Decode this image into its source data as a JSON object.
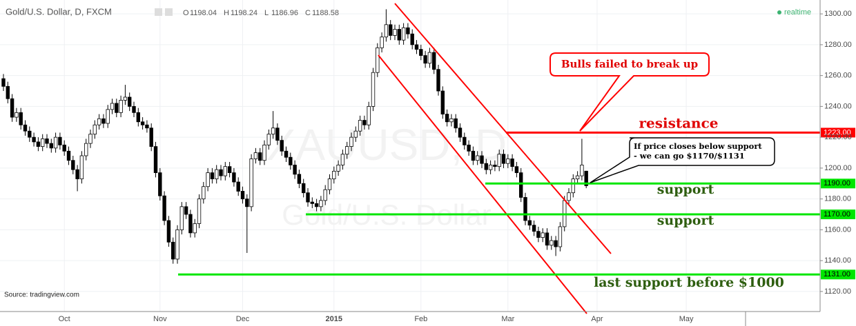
{
  "chart_data": {
    "type": "candlestick",
    "title": "Gold/U.S. Dollar, D, FXCM",
    "ohlc_letters": [
      "O",
      "H",
      "L",
      "C"
    ],
    "status": "realtime",
    "watermark": [
      "XAUUSD, D",
      "Gold/U.S. Dollar"
    ],
    "source": "Source: tradingview.com",
    "categories": [
      null,
      null,
      null,
      null,
      null,
      null,
      null,
      null,
      null,
      null,
      null,
      null,
      null,
      null,
      "Oct",
      null,
      null,
      null,
      null,
      null,
      null,
      null,
      null,
      null,
      null,
      null,
      null,
      null,
      null,
      null,
      null,
      null,
      null,
      null,
      null,
      null,
      "Nov",
      null,
      null,
      null,
      null,
      null,
      null,
      null,
      null,
      null,
      null,
      null,
      null,
      null,
      null,
      null,
      null,
      null,
      null,
      "Dec",
      null,
      null,
      null,
      null,
      null,
      null,
      null,
      null,
      null,
      null,
      null,
      null,
      null,
      null,
      null,
      null,
      null,
      null,
      null,
      null,
      "2015",
      null,
      null,
      null,
      null,
      null,
      null,
      null,
      null,
      null,
      null,
      null,
      null,
      null,
      null,
      null,
      null,
      null,
      null,
      null,
      "Feb",
      null,
      null,
      null,
      null,
      null,
      null,
      null,
      null,
      null,
      null,
      null,
      null,
      null,
      null,
      null,
      null,
      null,
      null,
      null,
      "Mar",
      null,
      null,
      null,
      null,
      null,
      null,
      null,
      null,
      null,
      null,
      null,
      null,
      null,
      null,
      null,
      null,
      null,
      null
    ],
    "future_categories": [
      "Apr",
      "May"
    ],
    "open": [
      1258,
      1253,
      1245,
      1233,
      1236,
      1228,
      1224,
      1220,
      1217,
      1214,
      1219,
      1216,
      1213,
      1220,
      1215,
      1211,
      1205,
      1199,
      1193,
      1208,
      1216,
      1222,
      1228,
      1232,
      1229,
      1238,
      1242,
      1236,
      1244,
      1246,
      1240,
      1236,
      1230,
      1228,
      1226,
      1214,
      1197,
      1182,
      1166,
      1152,
      1141,
      1160,
      1175,
      1170,
      1158,
      1164,
      1180,
      1188,
      1197,
      1193,
      1199,
      1195,
      1201,
      1197,
      1191,
      1185,
      1180,
      1175,
      1206,
      1210,
      1205,
      1215,
      1222,
      1226,
      1218,
      1211,
      1207,
      1202,
      1196,
      1190,
      1184,
      1178,
      1177,
      1175,
      1179,
      1186,
      1193,
      1198,
      1202,
      1209,
      1214,
      1220,
      1224,
      1231,
      1228,
      1240,
      1262,
      1278,
      1285,
      1293,
      1286,
      1290,
      1283,
      1291,
      1287,
      1280,
      1277,
      1273,
      1268,
      1275,
      1264,
      1250,
      1235,
      1230,
      1232,
      1226,
      1220,
      1215,
      1211,
      1205,
      1208,
      1203,
      1199,
      1202,
      1201,
      1209,
      1203,
      1206,
      1201,
      1197,
      1181,
      1166,
      1163,
      1159,
      1155,
      1158,
      1150,
      1153,
      1149,
      1162,
      1179,
      1184,
      1193,
      1195,
      1198.04
    ],
    "high": [
      1261,
      1256,
      1248,
      1239,
      1239,
      1231,
      1227,
      1223,
      1220,
      1222,
      1222,
      1219,
      1223,
      1223,
      1218,
      1214,
      1208,
      1202,
      1211,
      1219,
      1225,
      1231,
      1235,
      1235,
      1241,
      1245,
      1245,
      1247,
      1254,
      1249,
      1243,
      1239,
      1233,
      1231,
      1229,
      1217,
      1200,
      1185,
      1169,
      1155,
      1163,
      1178,
      1178,
      1173,
      1167,
      1183,
      1191,
      1200,
      1200,
      1202,
      1202,
      1204,
      1204,
      1200,
      1194,
      1188,
      1183,
      1209,
      1213,
      1213,
      1218,
      1225,
      1237,
      1229,
      1221,
      1214,
      1210,
      1205,
      1199,
      1193,
      1187,
      1181,
      1180,
      1182,
      1189,
      1196,
      1201,
      1205,
      1212,
      1217,
      1223,
      1227,
      1234,
      1234,
      1243,
      1265,
      1281,
      1288,
      1303,
      1296,
      1293,
      1293,
      1294,
      1294,
      1290,
      1283,
      1280,
      1276,
      1278,
      1278,
      1267,
      1253,
      1238,
      1235,
      1235,
      1229,
      1223,
      1218,
      1214,
      1211,
      1211,
      1206,
      1205,
      1205,
      1212,
      1212,
      1209,
      1209,
      1204,
      1200,
      1184,
      1169,
      1166,
      1162,
      1161,
      1161,
      1156,
      1156,
      1165,
      1182,
      1187,
      1196,
      1198,
      1219,
      1198.24
    ],
    "low": [
      1250,
      1242,
      1230,
      1230,
      1225,
      1221,
      1217,
      1214,
      1211,
      1211,
      1213,
      1210,
      1210,
      1212,
      1208,
      1202,
      1196,
      1185,
      1190,
      1205,
      1213,
      1219,
      1225,
      1226,
      1226,
      1235,
      1233,
      1233,
      1241,
      1237,
      1233,
      1227,
      1225,
      1223,
      1211,
      1194,
      1179,
      1163,
      1149,
      1138,
      1138,
      1157,
      1167,
      1155,
      1155,
      1161,
      1177,
      1185,
      1190,
      1190,
      1192,
      1192,
      1194,
      1188,
      1182,
      1177,
      1145,
      1172,
      1203,
      1202,
      1202,
      1212,
      1219,
      1215,
      1208,
      1204,
      1199,
      1193,
      1187,
      1181,
      1175,
      1174,
      1172,
      1172,
      1176,
      1183,
      1190,
      1195,
      1199,
      1206,
      1211,
      1217,
      1221,
      1225,
      1225,
      1237,
      1259,
      1275,
      1282,
      1283,
      1283,
      1280,
      1280,
      1284,
      1277,
      1274,
      1270,
      1265,
      1265,
      1261,
      1247,
      1232,
      1227,
      1227,
      1223,
      1217,
      1212,
      1208,
      1202,
      1202,
      1200,
      1196,
      1196,
      1198,
      1198,
      1200,
      1200,
      1198,
      1194,
      1178,
      1163,
      1160,
      1156,
      1152,
      1152,
      1147,
      1147,
      1143,
      1146,
      1159,
      1176,
      1181,
      1190,
      1192,
      1186.96
    ],
    "close": [
      1253,
      1245,
      1233,
      1236,
      1228,
      1224,
      1220,
      1217,
      1214,
      1219,
      1216,
      1213,
      1220,
      1215,
      1211,
      1205,
      1199,
      1193,
      1208,
      1216,
      1222,
      1228,
      1232,
      1229,
      1238,
      1242,
      1236,
      1244,
      1246,
      1240,
      1236,
      1230,
      1228,
      1226,
      1214,
      1197,
      1182,
      1166,
      1152,
      1141,
      1160,
      1175,
      1170,
      1158,
      1164,
      1180,
      1188,
      1197,
      1193,
      1199,
      1195,
      1201,
      1197,
      1191,
      1185,
      1180,
      1175,
      1206,
      1210,
      1205,
      1215,
      1222,
      1226,
      1218,
      1211,
      1207,
      1202,
      1196,
      1190,
      1184,
      1178,
      1177,
      1175,
      1179,
      1186,
      1193,
      1198,
      1202,
      1209,
      1214,
      1220,
      1224,
      1231,
      1228,
      1240,
      1262,
      1278,
      1285,
      1293,
      1286,
      1290,
      1283,
      1291,
      1287,
      1280,
      1277,
      1273,
      1268,
      1275,
      1264,
      1250,
      1235,
      1230,
      1232,
      1226,
      1220,
      1215,
      1211,
      1205,
      1208,
      1203,
      1199,
      1202,
      1201,
      1209,
      1203,
      1206,
      1201,
      1197,
      1181,
      1166,
      1163,
      1159,
      1155,
      1158,
      1150,
      1153,
      1149,
      1162,
      1179,
      1184,
      1193,
      1195,
      1202,
      1188.58
    ],
    "up_color": "#ffffff",
    "down_color": "#000000",
    "ylim": [
      1107,
      1309
    ],
    "yticks": [
      {
        "value": 1120,
        "label": "1120.00"
      },
      {
        "value": 1140,
        "label": "1140.00"
      },
      {
        "value": 1160,
        "label": "1160.00"
      },
      {
        "value": 1180,
        "label": "1180.00"
      },
      {
        "value": 1200,
        "label": "1200.00"
      },
      {
        "value": 1220,
        "label": "1220.00"
      },
      {
        "value": 1240,
        "label": "1240.00"
      },
      {
        "value": 1260,
        "label": "1260.00"
      },
      {
        "value": 1280,
        "label": "1280.00"
      },
      {
        "value": 1300,
        "label": "1300.00"
      }
    ],
    "grid": true,
    "levels": [
      {
        "value": 1223,
        "label": "1223.00",
        "color": "#ff0000",
        "text": "resistance"
      },
      {
        "value": 1190,
        "label": "1190.00",
        "color": "#00e600",
        "text": "support"
      },
      {
        "value": 1170,
        "label": "1170.00",
        "color": "#00e600",
        "text": "support"
      },
      {
        "value": 1131,
        "label": "1131.00",
        "color": "#00e600",
        "text": "last support before $1000"
      }
    ],
    "callouts": [
      "Bulls failed to break up",
      "If price closes below support",
      "- we can go $1170/$1131"
    ]
  }
}
